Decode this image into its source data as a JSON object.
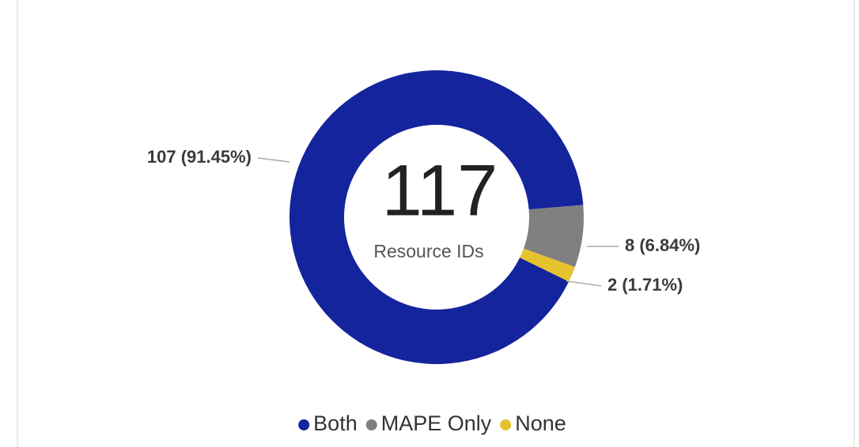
{
  "chart_data": {
    "type": "donut",
    "categories": [
      "Both",
      "MAPE Only",
      "None"
    ],
    "values": [
      107,
      8,
      2
    ],
    "value_labels": [
      "107 (91.45%)",
      "8 (6.84%)",
      "2 (1.71%)"
    ],
    "colors": [
      "#13249c",
      "#808080",
      "#e6c22e"
    ],
    "center_value": 117,
    "center_label": "Resource IDs",
    "legend": "bottom"
  }
}
